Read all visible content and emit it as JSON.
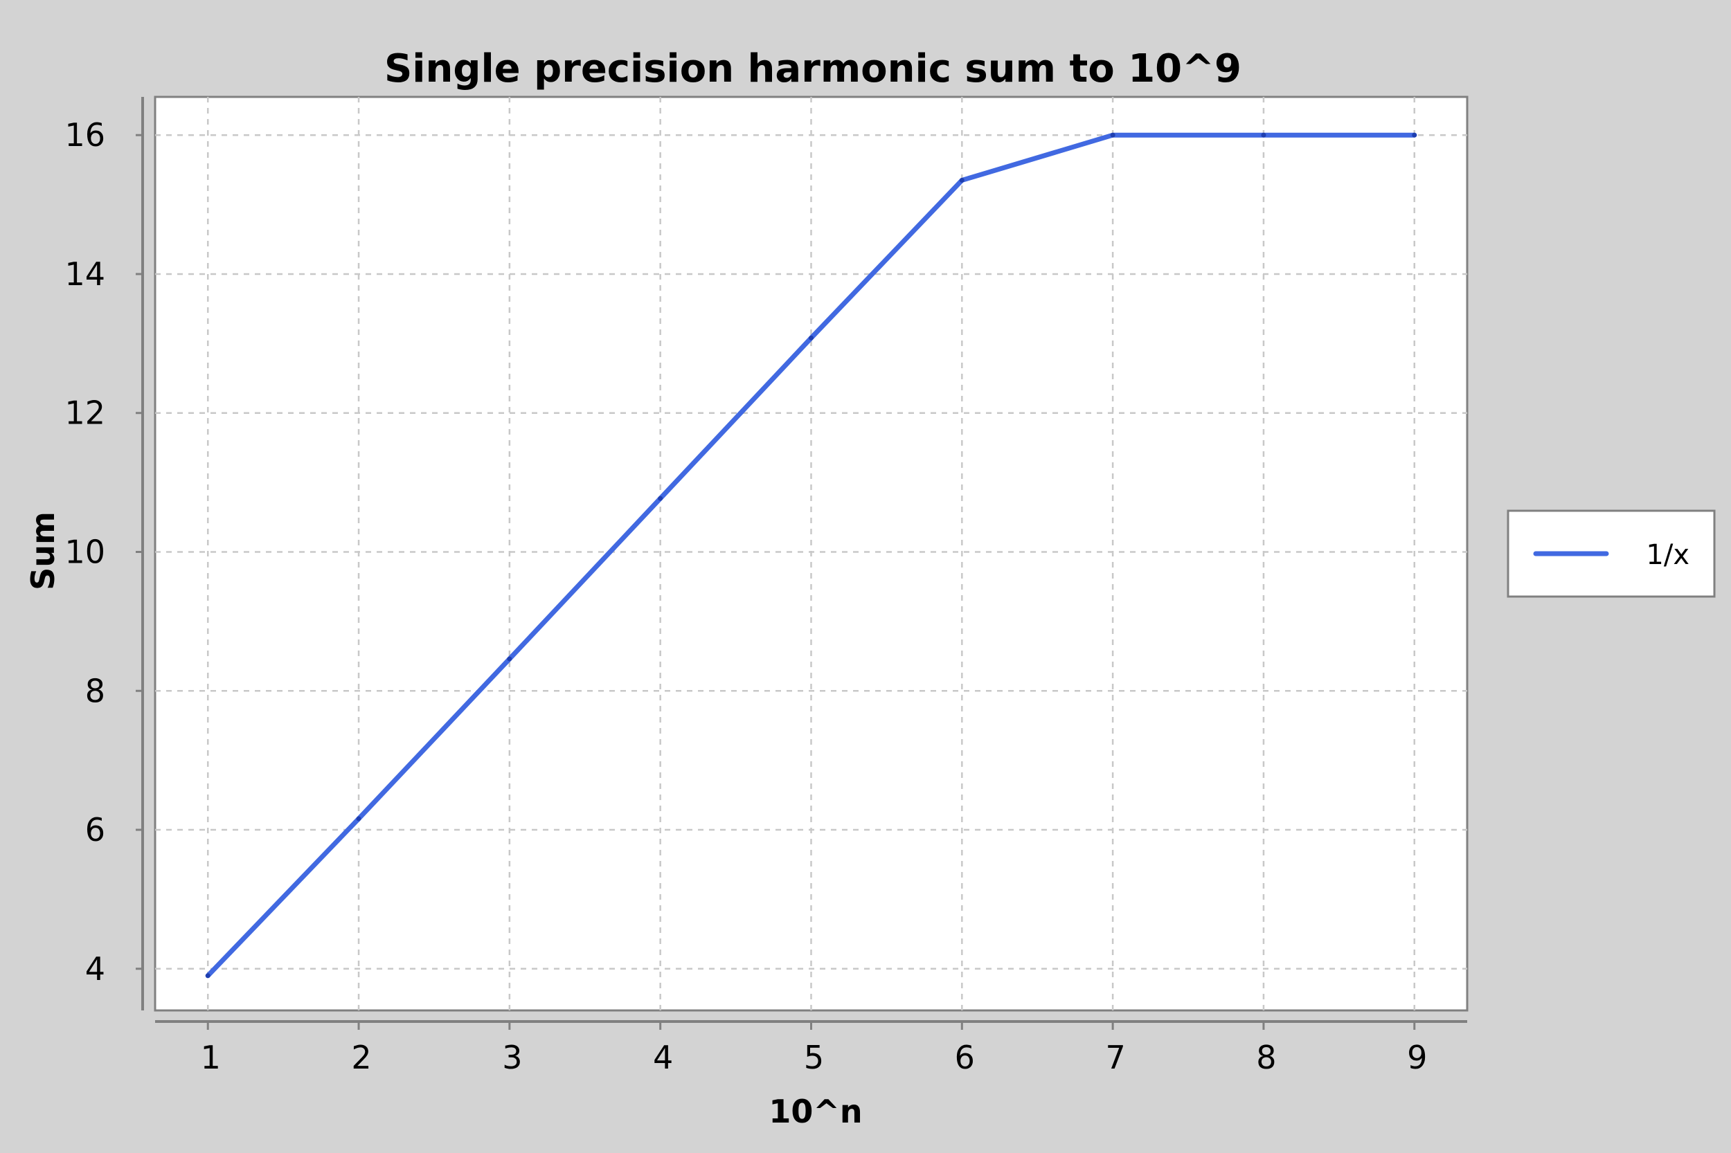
{
  "chart_data": {
    "type": "line",
    "title": "Single precision harmonic sum to 10^9",
    "xlabel": "10^n",
    "ylabel": "Sum",
    "x": [
      1,
      2,
      3,
      4,
      5,
      6,
      7,
      8,
      9
    ],
    "series": [
      {
        "name": "1/x",
        "values": [
          3.9,
          6.16,
          8.46,
          10.77,
          13.08,
          15.35,
          16.0,
          16.0,
          16.0
        ],
        "color": "#4169e1"
      }
    ],
    "xlim": [
      0.65,
      9.35
    ],
    "ylim": [
      3.4,
      16.55
    ],
    "xticks": [
      1,
      2,
      3,
      4,
      5,
      6,
      7,
      8,
      9
    ],
    "yticks": [
      4,
      6,
      8,
      10,
      12,
      14,
      16
    ],
    "grid": true,
    "legend_position": "right"
  }
}
